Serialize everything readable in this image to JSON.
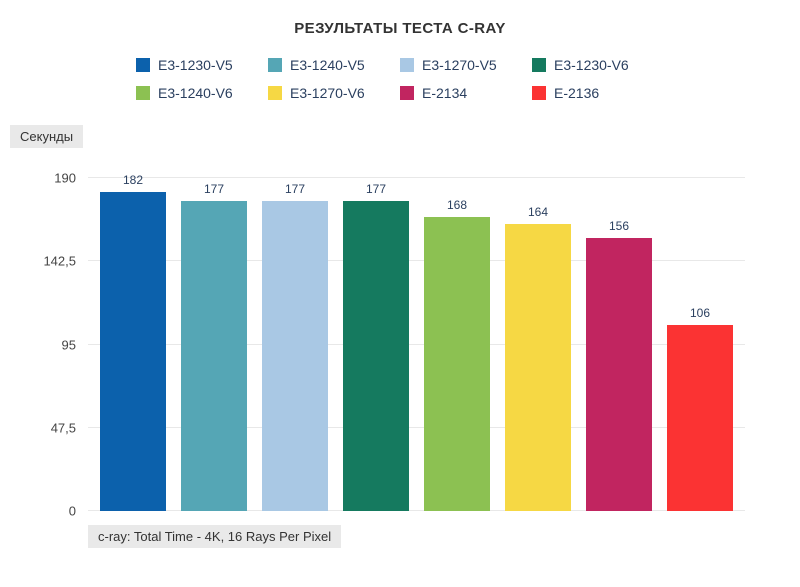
{
  "title": "РЕЗУЛЬТАТЫ ТЕСТА C-RAY",
  "annotations": {
    "ylabel_box": "Секунды",
    "caption_box": "c-ray: Total Time - 4K, 16 Rays Per Pixel"
  },
  "colors": {
    "background": "#ffffff",
    "title_text": "#333333",
    "body_text": "#2a3f5f",
    "tick_text": "#444444",
    "gridline": "#e8e8e8",
    "annotation_bg": "#e9e9e9"
  },
  "chart_data": {
    "type": "bar",
    "title": "РЕЗУЛЬТАТЫ ТЕСТА C-RAY",
    "ylabel": "Секунды",
    "categories": [
      "E3-1230-V5",
      "E3-1240-V5",
      "E3-1270-V5",
      "E3-1230-V6",
      "E3-1240-V6",
      "E3-1270-V6",
      "E-2134",
      "E-2136"
    ],
    "values": [
      182,
      177,
      177,
      177,
      168,
      164,
      156,
      106
    ],
    "bar_colors": [
      "#0c61ac",
      "#55a6b5",
      "#a9c8e4",
      "#157a5f",
      "#8cc152",
      "#f6d844",
      "#c12560",
      "#fb3333"
    ],
    "ylim": [
      0,
      190
    ],
    "yticks": [
      {
        "value": 190,
        "label": "190"
      },
      {
        "value": 142.5,
        "label": "142,5"
      },
      {
        "value": 95,
        "label": "95"
      },
      {
        "value": 47.5,
        "label": "47,5"
      },
      {
        "value": 0,
        "label": "0"
      }
    ],
    "grid": true,
    "legend_position": "top",
    "annotation": "c-ray: Total Time - 4K, 16 Rays Per Pixel"
  }
}
